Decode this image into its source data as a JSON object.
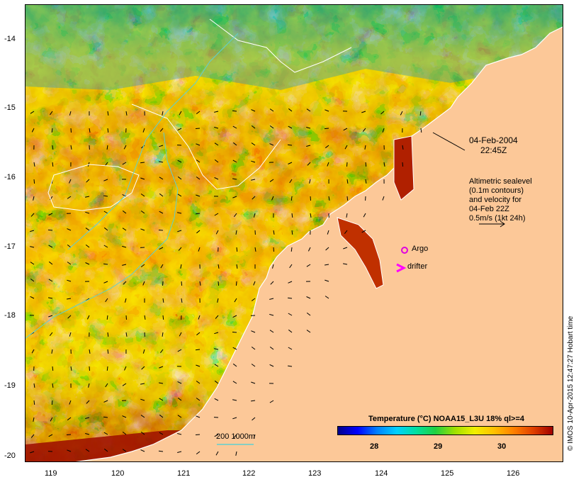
{
  "map": {
    "timestamp_date": "04-Feb-2004",
    "timestamp_time": "22:45Z",
    "altimetry_note": [
      "Altimetric sealevel",
      "(0.1m contours)",
      "and velocity for",
      "04-Feb 22Z",
      "0.5m/s (1kt 24h)"
    ],
    "argo_label": "Argo",
    "drifter_label": "drifter",
    "depth_legend": "200  1000m",
    "credit": "© IMOS 10-Apr-2015 12:47:27 Hobart time",
    "colors": {
      "land": "#fcc898",
      "coast": "#ffffff",
      "argo": "#e000e0",
      "drifter": "#ff00ff",
      "bathy": "#5fd0d0"
    }
  },
  "axes": {
    "x_ticks": [
      "119",
      "120",
      "121",
      "122",
      "123",
      "124",
      "125",
      "126"
    ],
    "y_ticks": [
      "-14",
      "-15",
      "-16",
      "-17",
      "-18",
      "-19",
      "-20"
    ]
  },
  "colorbar": {
    "title": "Temperature (°C) NOAA15_L3U 18% ql>=4",
    "ticks": [
      "28",
      "29",
      "30"
    ],
    "colors": [
      "#00008b",
      "#0000ff",
      "#0080ff",
      "#00d0ff",
      "#00e0a0",
      "#20d040",
      "#a0e000",
      "#f0f000",
      "#ffc000",
      "#ff8000",
      "#e04000",
      "#a00000"
    ]
  }
}
